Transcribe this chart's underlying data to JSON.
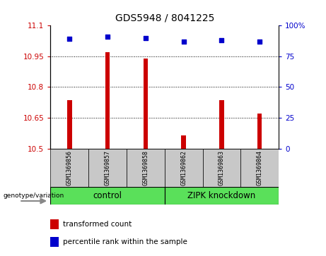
{
  "title": "GDS5948 / 8041225",
  "samples": [
    "GSM1369856",
    "GSM1369857",
    "GSM1369858",
    "GSM1369862",
    "GSM1369863",
    "GSM1369864"
  ],
  "bar_values": [
    10.735,
    10.97,
    10.94,
    10.565,
    10.735,
    10.67
  ],
  "percentile_values": [
    89,
    91,
    90,
    87,
    88,
    87
  ],
  "ylim_left": [
    10.5,
    11.1
  ],
  "yticks_left": [
    10.5,
    10.65,
    10.8,
    10.95,
    11.1
  ],
  "ytick_labels_left": [
    "10.5",
    "10.65",
    "10.8",
    "10.95",
    "11.1"
  ],
  "ylim_right": [
    0,
    100
  ],
  "yticks_right": [
    0,
    25,
    50,
    75,
    100
  ],
  "ytick_labels_right": [
    "0",
    "25",
    "50",
    "75",
    "100%"
  ],
  "bar_color": "#CC0000",
  "dot_color": "#0000CC",
  "left_tick_color": "#CC0000",
  "right_tick_color": "#0000CC",
  "legend_items": [
    {
      "color": "#CC0000",
      "label": "transformed count"
    },
    {
      "color": "#0000CC",
      "label": "percentile rank within the sample"
    }
  ],
  "gray_color": "#C8C8C8",
  "green_color": "#5AE05A",
  "bar_width": 0.12,
  "base_value": 10.5
}
